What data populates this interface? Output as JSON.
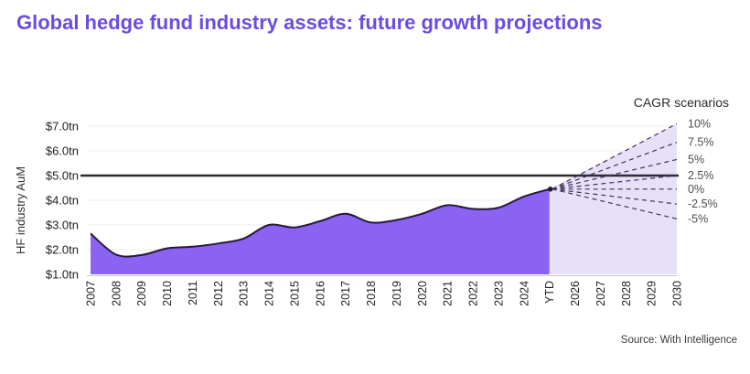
{
  "title": "Global hedge fund industry assets: future growth projections",
  "source": "Source: With Intelligence",
  "colors": {
    "title_accent": "#6C4BE0",
    "area_fill": "#8B63F2",
    "area_stroke": "#261A3C",
    "fan_fill": "#E7E0F8",
    "dashed_line": "#3E3557",
    "reference_line": "#2C2C33",
    "gridline": "#ECECEC",
    "axis_line": "#C8C8C8",
    "tick_text": "#1F1F1F",
    "scenario_text": "#4D4D4D",
    "heading_text": "#2B2B2B"
  },
  "chart_data": {
    "type": "area",
    "title": "Global hedge fund industry assets: future growth projections",
    "xlabel": "",
    "ylabel": "HF industry AuM",
    "unit": "$tn",
    "ylim": [
      1.0,
      7.5
    ],
    "grid": true,
    "x_categories": [
      "2007",
      "2008",
      "2009",
      "2010",
      "2011",
      "2012",
      "2013",
      "2014",
      "2015",
      "2016",
      "2017",
      "2018",
      "2019",
      "2020",
      "2021",
      "2022",
      "2023",
      "2024",
      "YTD",
      "2026",
      "2027",
      "2028",
      "2029",
      "2030"
    ],
    "yticks": [
      {
        "value": 1.0,
        "label": "$1.0tn"
      },
      {
        "value": 2.0,
        "label": "$2.0tn"
      },
      {
        "value": 3.0,
        "label": "$3.0tn"
      },
      {
        "value": 4.0,
        "label": "$4.0tn"
      },
      {
        "value": 5.0,
        "label": "$5.0tn"
      },
      {
        "value": 6.0,
        "label": "$6.0tn"
      },
      {
        "value": 7.0,
        "label": "$7.0tn"
      }
    ],
    "reference_line": {
      "value": 5.0
    },
    "historical": {
      "categories": [
        "2007",
        "2008",
        "2009",
        "2010",
        "2011",
        "2012",
        "2013",
        "2014",
        "2015",
        "2016",
        "2017",
        "2018",
        "2019",
        "2020",
        "2021",
        "2022",
        "2023",
        "2024",
        "YTD"
      ],
      "values": [
        2.65,
        1.8,
        1.78,
        2.05,
        2.12,
        2.25,
        2.45,
        3.0,
        2.9,
        3.15,
        3.45,
        3.1,
        3.2,
        3.45,
        3.8,
        3.65,
        3.7,
        4.15,
        4.45
      ]
    },
    "projection": {
      "scenarios_heading": "CAGR scenarios",
      "start_category": "YTD",
      "start_value": 4.45,
      "end_category": "2030",
      "scenarios": [
        {
          "label": "10%",
          "end_value": 7.1
        },
        {
          "label": "7.5%",
          "end_value": 6.35
        },
        {
          "label": "5%",
          "end_value": 5.65
        },
        {
          "label": "2.5%",
          "end_value": 5.0
        },
        {
          "label": "0%",
          "end_value": 4.45
        },
        {
          "label": "-2.5%",
          "end_value": 3.85
        },
        {
          "label": "-5%",
          "end_value": 3.25
        }
      ]
    },
    "legend": "none"
  }
}
